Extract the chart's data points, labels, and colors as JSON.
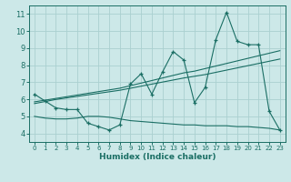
{
  "xlabel": "Humidex (Indice chaleur)",
  "xlim": [
    -0.5,
    23.5
  ],
  "ylim": [
    3.5,
    11.5
  ],
  "yticks": [
    4,
    5,
    6,
    7,
    8,
    9,
    10,
    11
  ],
  "xticks": [
    0,
    1,
    2,
    3,
    4,
    5,
    6,
    7,
    8,
    9,
    10,
    11,
    12,
    13,
    14,
    15,
    16,
    17,
    18,
    19,
    20,
    21,
    22,
    23
  ],
  "bg_color": "#cce8e8",
  "line_color": "#1a6e64",
  "grid_color": "#aad0d0",
  "line1_x": [
    0,
    1,
    2,
    3,
    4,
    5,
    6,
    7,
    8,
    9,
    10,
    11,
    12,
    13,
    14,
    15,
    16,
    17,
    18,
    19,
    20,
    21,
    22,
    23
  ],
  "line1_y": [
    6.3,
    5.9,
    5.5,
    5.4,
    5.4,
    4.6,
    4.4,
    4.2,
    4.5,
    6.9,
    7.5,
    6.3,
    7.6,
    8.8,
    8.3,
    5.8,
    6.7,
    9.5,
    11.1,
    9.4,
    9.2,
    9.2,
    5.3,
    4.2
  ],
  "line2_x": [
    0,
    1,
    2,
    3,
    4,
    5,
    6,
    7,
    8,
    9,
    10,
    11,
    12,
    13,
    14,
    15,
    16,
    17,
    18,
    19,
    20,
    21,
    22,
    23
  ],
  "line2_y": [
    5.85,
    5.95,
    6.05,
    6.15,
    6.25,
    6.35,
    6.45,
    6.55,
    6.65,
    6.8,
    6.95,
    7.1,
    7.25,
    7.4,
    7.55,
    7.65,
    7.8,
    7.95,
    8.1,
    8.25,
    8.4,
    8.55,
    8.7,
    8.85
  ],
  "line3_x": [
    0,
    1,
    2,
    3,
    4,
    5,
    6,
    7,
    8,
    9,
    10,
    11,
    12,
    13,
    14,
    15,
    16,
    17,
    18,
    19,
    20,
    21,
    22,
    23
  ],
  "line3_y": [
    5.75,
    5.87,
    5.99,
    6.08,
    6.17,
    6.26,
    6.35,
    6.44,
    6.53,
    6.65,
    6.77,
    6.89,
    7.01,
    7.13,
    7.25,
    7.35,
    7.45,
    7.58,
    7.71,
    7.84,
    7.97,
    8.1,
    8.23,
    8.36
  ],
  "line4_x": [
    0,
    1,
    2,
    3,
    4,
    5,
    6,
    7,
    8,
    9,
    10,
    11,
    12,
    13,
    14,
    15,
    16,
    17,
    18,
    19,
    20,
    21,
    22,
    23
  ],
  "line4_y": [
    5.0,
    4.9,
    4.85,
    4.85,
    4.9,
    5.0,
    5.0,
    4.95,
    4.85,
    4.75,
    4.7,
    4.65,
    4.6,
    4.55,
    4.5,
    4.5,
    4.45,
    4.45,
    4.45,
    4.4,
    4.4,
    4.35,
    4.3,
    4.2
  ]
}
